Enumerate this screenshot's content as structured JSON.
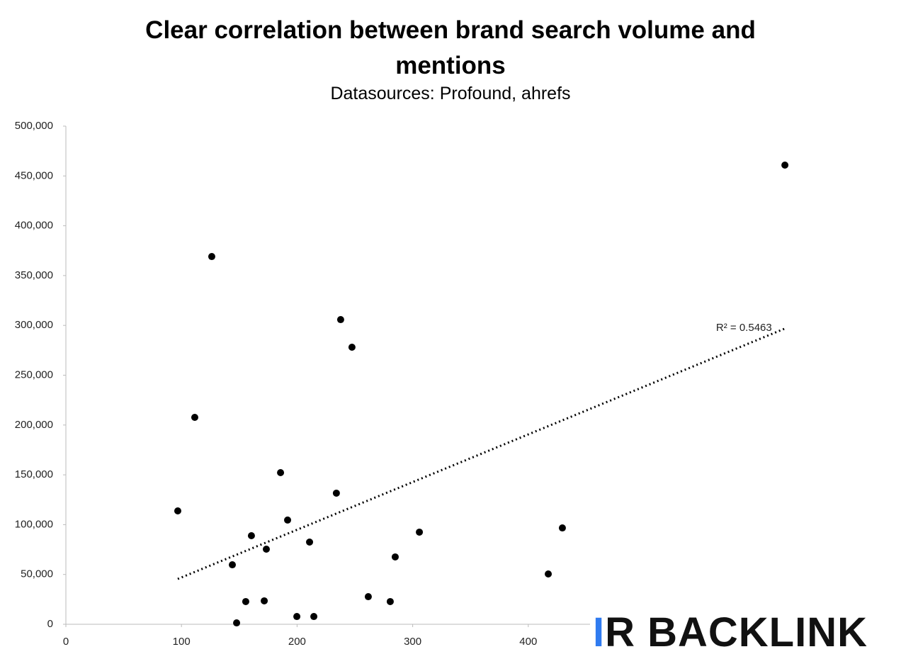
{
  "chart_data": {
    "type": "scatter",
    "title": "Clear correlation between brand search volume and mentions",
    "subtitle": "Datasources: Profound, ahrefs",
    "x": [
      96.8,
      111.5,
      126.2,
      144,
      147.7,
      155.6,
      160.5,
      171.6,
      173.4,
      185.7,
      191.8,
      199.8,
      210.8,
      214.5,
      234,
      237.7,
      247.5,
      261.6,
      280.6,
      284.9,
      305.8,
      417.3,
      429.5,
      622
    ],
    "values": [
      113800,
      207700,
      369100,
      59700,
      1400,
      22800,
      88900,
      23500,
      75400,
      152200,
      104600,
      7800,
      82500,
      7800,
      131600,
      305800,
      278100,
      27700,
      22800,
      67600,
      92500,
      50500,
      96700,
      460900
    ],
    "color": "#000000",
    "trendline": {
      "x": [
        96.8,
        623
      ],
      "values": [
        45500,
        297300
      ],
      "label": "R² = 0.5463"
    },
    "xlim": [
      0,
      700
    ],
    "xticks": [
      0,
      100,
      200,
      300,
      400
    ],
    "ylim": [
      0,
      500000
    ],
    "yticks": [
      {
        "value": 0,
        "label": "0"
      },
      {
        "value": 50000,
        "label": "50,000"
      },
      {
        "value": 100000,
        "label": "100,000"
      },
      {
        "value": 150000,
        "label": "150,000"
      },
      {
        "value": 200000,
        "label": "200,000"
      },
      {
        "value": 250000,
        "label": "250,000"
      },
      {
        "value": 300000,
        "label": "300,000"
      },
      {
        "value": 350000,
        "label": "350,000"
      },
      {
        "value": 400000,
        "label": "400,000"
      },
      {
        "value": 450000,
        "label": "450,000"
      },
      {
        "value": 500000,
        "label": "500,000"
      }
    ],
    "grid": false
  },
  "watermark": {
    "mark": "I",
    "text": "R BACKLINK"
  }
}
